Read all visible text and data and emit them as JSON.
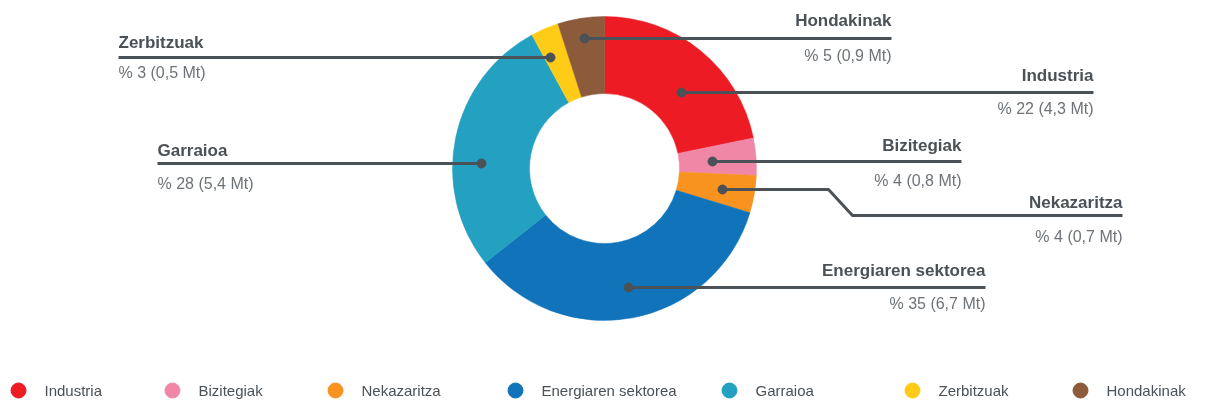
{
  "chart_data": {
    "type": "donut",
    "categories": [
      "Industria",
      "Bizitegiak",
      "Nekazaritza",
      "Energiaren sektorea",
      "Garraioa",
      "Zerbitzuak",
      "Hondakinak"
    ],
    "values": [
      22,
      4,
      4,
      35,
      28,
      3,
      5
    ],
    "value_labels": [
      "% 22 (4,3 Mt)",
      "% 4 (0,8 Mt)",
      "% 4 (0,7 Mt)",
      "% 35 (6,7 Mt)",
      "% 28 (5,4 Mt)",
      "% 3 (0,5 Mt)",
      "% 5 (0,9 Mt)"
    ],
    "colors": [
      "#ed1c24",
      "#f087a6",
      "#f7931e",
      "#1174bb",
      "#24a1c1",
      "#fecb17",
      "#8c5b3b"
    ],
    "legend": "bottom"
  }
}
